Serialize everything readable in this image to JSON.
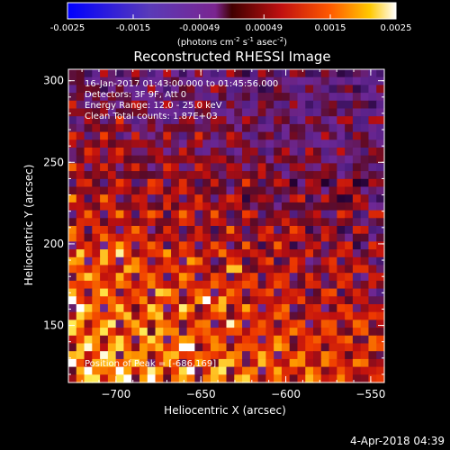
{
  "chart_data": {
    "type": "heatmap",
    "title": "Reconstructed RHESSI Image",
    "xlabel": "Heliocentric X (arcsec)",
    "ylabel": "Heliocentric Y (arcsec)",
    "x_ticks": [
      -700,
      -650,
      -600,
      -550
    ],
    "y_ticks": [
      150,
      200,
      250,
      300
    ],
    "xlim": [
      -728,
      -542
    ],
    "ylim": [
      115,
      307
    ],
    "colorbar": {
      "ticks": [
        "-0.0025",
        "-0.0015",
        "-0.00049",
        "0.00049",
        "0.0015",
        "0.0025"
      ],
      "range": [
        -0.0025,
        0.0025
      ],
      "unit_label": "(photons cm",
      "unit_exp1": "-2",
      "unit_mid": " s",
      "unit_exp2": "-1",
      "unit_mid2": " asec",
      "unit_exp3": "-2",
      "unit_end": ")"
    },
    "annotations": [
      "16-Jan-2017 01:43:00.000 to 01:45:56.000",
      "Detectors: 3F 9F, Att 0",
      "Energy Range: 12.0 - 25.0 keV",
      "Clean     Total counts: 1.87E+03"
    ],
    "peak_label": "Position of Peak = [-686,169]",
    "peak": {
      "x": -686,
      "y": 169
    }
  },
  "timestamp": "4-Apr-2018 04:39"
}
